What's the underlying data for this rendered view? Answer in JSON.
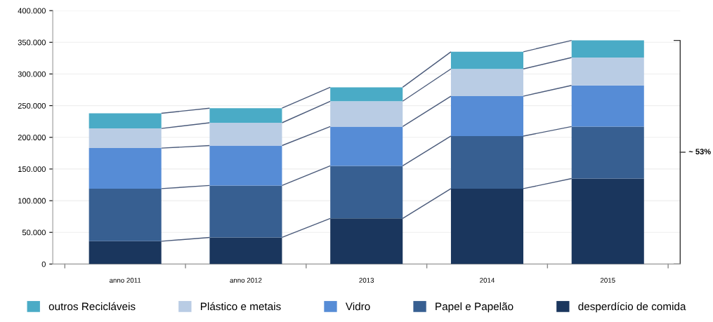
{
  "chart_data": {
    "type": "bar",
    "stacked": true,
    "categories": [
      "anno 2011",
      "anno 2012",
      "2013",
      "2014",
      "2015"
    ],
    "series": [
      {
        "name": "desperdício de comida",
        "color": "#1a365d",
        "values": [
          36000,
          42000,
          72000,
          119000,
          135000
        ]
      },
      {
        "name": "Papel e Papelão",
        "color": "#375f91",
        "values": [
          83000,
          82000,
          83000,
          83000,
          82000
        ]
      },
      {
        "name": "Vidro",
        "color": "#568cd6",
        "values": [
          64000,
          63000,
          62000,
          63000,
          65000
        ]
      },
      {
        "name": "Plástico e metais",
        "color": "#b9cce4",
        "values": [
          31000,
          36000,
          40000,
          43000,
          44000
        ]
      },
      {
        "name": "outros Recicláveis",
        "color": "#4aabc6",
        "values": [
          24000,
          23000,
          22000,
          27000,
          27000
        ]
      }
    ],
    "ylim": [
      0,
      400000
    ],
    "yticks": [
      0,
      {
        "value": 50000,
        "label": "50.000"
      },
      {
        "value": 100000,
        "label": "100.000"
      },
      {
        "value": 150000,
        "label": "150.000"
      },
      {
        "value": 200000,
        "label": "200.000"
      },
      {
        "value": 250000,
        "label": "250.000"
      },
      {
        "value": 300000,
        "label": "300.000"
      },
      {
        "value": 350000,
        "label": "350.000"
      },
      {
        "value": 400000,
        "label": "400.000"
      }
    ],
    "grid": "y",
    "legend": "bottom",
    "annotations": [
      "~ 53%"
    ]
  }
}
